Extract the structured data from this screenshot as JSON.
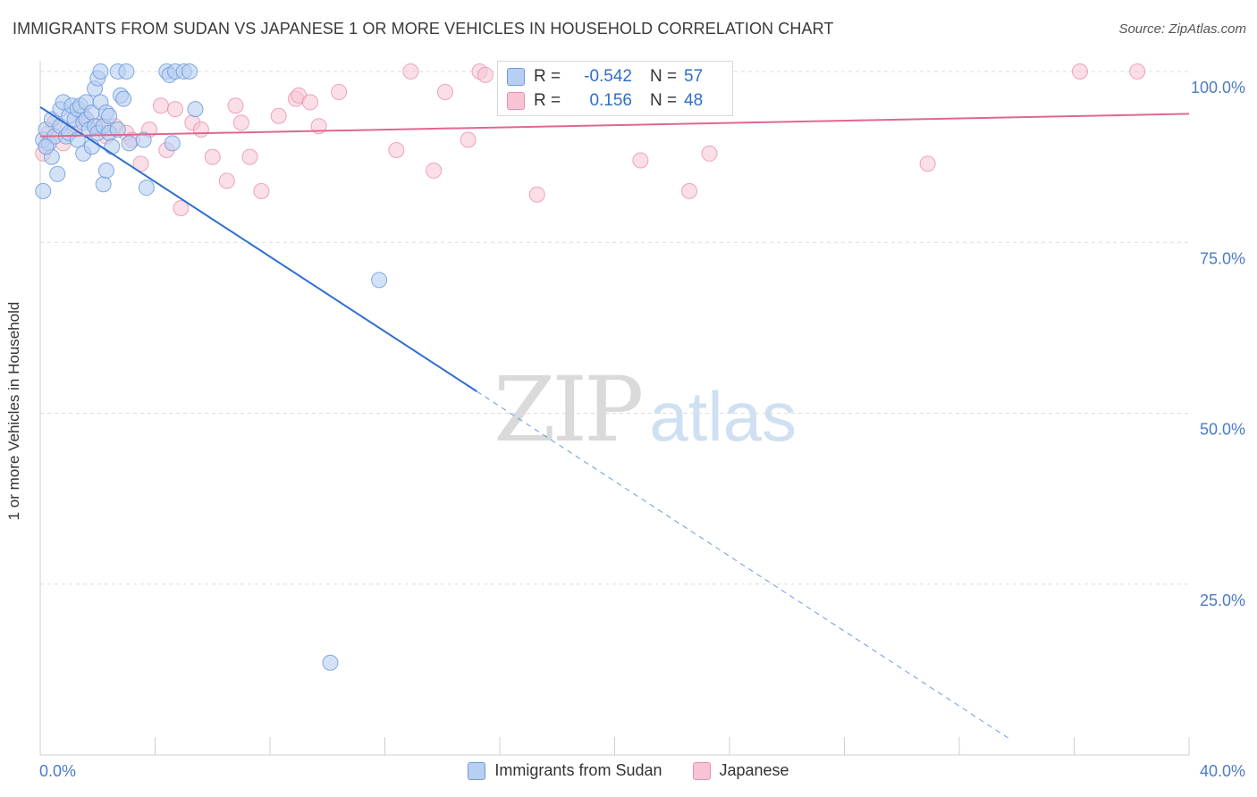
{
  "title": "IMMIGRANTS FROM SUDAN VS JAPANESE 1 OR MORE VEHICLES IN HOUSEHOLD CORRELATION CHART",
  "source": "Source: ZipAtlas.com",
  "watermark": {
    "zip": "ZIP",
    "atlas": "atlas"
  },
  "colors": {
    "sudan_fill": "#b7cff2",
    "sudan_stroke": "#6e9bdb",
    "sudan_line": "#2f6fd0",
    "japanese_fill": "#f8c4d4",
    "japanese_stroke": "#ea8fad",
    "japanese_line": "#e0678f",
    "axis_text": "#4a7cc7",
    "grid": "#dcdcdc"
  },
  "stats": [
    {
      "series": "sudan",
      "r_label": "R =",
      "r_value": "-0.542",
      "n_label": "N =",
      "n_value": "57"
    },
    {
      "series": "japanese",
      "r_label": "R =",
      "r_value": "0.156",
      "n_label": "N =",
      "n_value": "48"
    }
  ],
  "chart_data": {
    "type": "scatter",
    "title": "IMMIGRANTS FROM SUDAN VS JAPANESE 1 OR MORE VEHICLES IN HOUSEHOLD CORRELATION CHART",
    "xlabel": "",
    "ylabel": "1 or more Vehicles in Household",
    "xlim": [
      0,
      40
    ],
    "ylim": [
      0,
      100
    ],
    "x_tick_labels": [
      "0.0%",
      "40.0%"
    ],
    "y_tick_labels": [
      "100.0%",
      "75.0%",
      "50.0%",
      "25.0%"
    ],
    "y_ticks": [
      100,
      75,
      50,
      25
    ],
    "grid": true,
    "legend_position": "bottom",
    "series": [
      {
        "name": "Immigrants from Sudan",
        "key": "sudan",
        "trend": {
          "x0": 0,
          "y0": 94.8,
          "x1": 15.2,
          "y1": 53.2,
          "dash_to_x": 33.7,
          "dash_to_y": 2.5
        },
        "points": [
          [
            0.1,
            90.0
          ],
          [
            0.2,
            91.5
          ],
          [
            0.3,
            89.5
          ],
          [
            0.4,
            87.5
          ],
          [
            0.4,
            93.0
          ],
          [
            0.5,
            90.5
          ],
          [
            0.6,
            85.0
          ],
          [
            0.7,
            92.0
          ],
          [
            0.7,
            94.5
          ],
          [
            0.8,
            95.5
          ],
          [
            0.9,
            90.5
          ],
          [
            1.0,
            93.5
          ],
          [
            1.0,
            91.0
          ],
          [
            1.1,
            95.0
          ],
          [
            1.2,
            93.0
          ],
          [
            1.3,
            94.5
          ],
          [
            1.3,
            90.0
          ],
          [
            1.4,
            95.0
          ],
          [
            1.5,
            92.5
          ],
          [
            1.5,
            88.0
          ],
          [
            1.6,
            95.5
          ],
          [
            1.6,
            93.0
          ],
          [
            1.7,
            91.5
          ],
          [
            1.8,
            94.0
          ],
          [
            1.8,
            89.0
          ],
          [
            1.9,
            92.0
          ],
          [
            1.9,
            97.5
          ],
          [
            2.0,
            99.0
          ],
          [
            2.0,
            91.0
          ],
          [
            2.1,
            100.0
          ],
          [
            2.1,
            95.5
          ],
          [
            2.2,
            92.0
          ],
          [
            2.2,
            83.5
          ],
          [
            2.3,
            85.5
          ],
          [
            2.3,
            94.0
          ],
          [
            2.4,
            91.0
          ],
          [
            2.4,
            93.5
          ],
          [
            2.5,
            89.0
          ],
          [
            2.7,
            91.5
          ],
          [
            2.7,
            100.0
          ],
          [
            2.8,
            96.5
          ],
          [
            2.9,
            96.0
          ],
          [
            3.0,
            100.0
          ],
          [
            3.1,
            89.5
          ],
          [
            3.6,
            90.0
          ],
          [
            3.7,
            83.0
          ],
          [
            4.4,
            100.0
          ],
          [
            4.5,
            99.5
          ],
          [
            4.6,
            89.5
          ],
          [
            4.7,
            100.0
          ],
          [
            5.0,
            100.0
          ],
          [
            5.2,
            100.0
          ],
          [
            5.4,
            94.5
          ],
          [
            0.2,
            89.0
          ],
          [
            0.1,
            82.5
          ],
          [
            11.8,
            69.5
          ],
          [
            10.1,
            13.5
          ]
        ]
      },
      {
        "name": "Japanese",
        "key": "japanese",
        "trend": {
          "x0": 0,
          "y0": 90.5,
          "x1": 40,
          "y1": 93.8
        },
        "points": [
          [
            0.1,
            88.0
          ],
          [
            0.3,
            91.0
          ],
          [
            0.5,
            92.5
          ],
          [
            0.8,
            89.5
          ],
          [
            1.2,
            91.5
          ],
          [
            1.5,
            93.5
          ],
          [
            2.0,
            92.0
          ],
          [
            2.3,
            90.5
          ],
          [
            2.6,
            92.0
          ],
          [
            3.0,
            91.0
          ],
          [
            3.2,
            90.0
          ],
          [
            3.5,
            86.5
          ],
          [
            3.8,
            91.5
          ],
          [
            4.2,
            95.0
          ],
          [
            4.4,
            88.5
          ],
          [
            4.7,
            94.5
          ],
          [
            4.9,
            80.0
          ],
          [
            5.3,
            92.5
          ],
          [
            5.6,
            91.5
          ],
          [
            6.0,
            87.5
          ],
          [
            6.5,
            84.0
          ],
          [
            6.8,
            95.0
          ],
          [
            7.0,
            92.5
          ],
          [
            7.3,
            87.5
          ],
          [
            7.7,
            82.5
          ],
          [
            8.3,
            93.5
          ],
          [
            8.9,
            96.0
          ],
          [
            9.0,
            96.5
          ],
          [
            9.4,
            95.5
          ],
          [
            9.7,
            92.0
          ],
          [
            10.4,
            97.0
          ],
          [
            12.4,
            88.5
          ],
          [
            12.9,
            100.0
          ],
          [
            13.7,
            85.5
          ],
          [
            14.1,
            97.0
          ],
          [
            14.9,
            90.0
          ],
          [
            15.3,
            100.0
          ],
          [
            16.4,
            100.0
          ],
          [
            17.0,
            95.5
          ],
          [
            17.3,
            82.0
          ],
          [
            20.9,
            87.0
          ],
          [
            22.6,
            82.5
          ],
          [
            23.3,
            88.0
          ],
          [
            30.9,
            86.5
          ],
          [
            36.2,
            100.0
          ],
          [
            38.2,
            100.0
          ],
          [
            16.5,
            95.0
          ],
          [
            15.5,
            99.5
          ]
        ]
      }
    ]
  }
}
